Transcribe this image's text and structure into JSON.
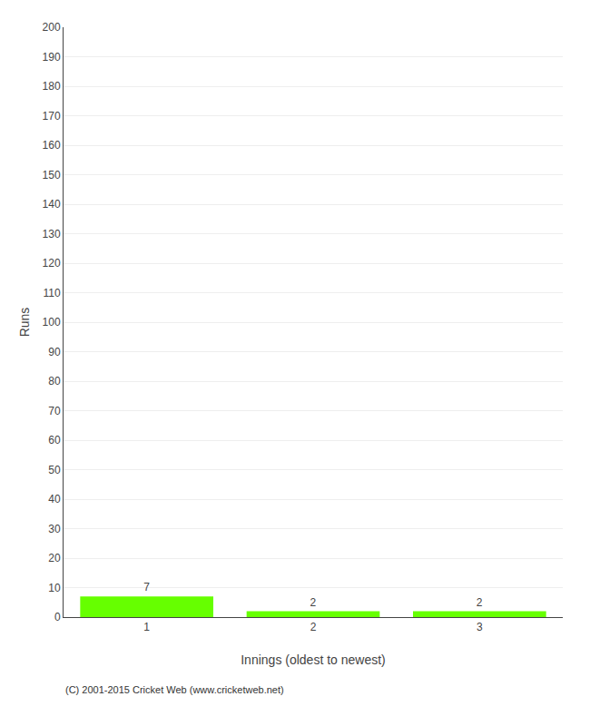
{
  "chart_data": {
    "type": "bar",
    "categories": [
      "1",
      "2",
      "3"
    ],
    "values": [
      7,
      2,
      2
    ],
    "color": "#66ff00",
    "xlabel": "Innings (oldest to newest)",
    "ylabel": "Runs",
    "ylim": [
      0,
      200
    ],
    "yticks": [
      0,
      10,
      20,
      30,
      40,
      50,
      60,
      70,
      80,
      90,
      100,
      110,
      120,
      130,
      140,
      150,
      160,
      170,
      180,
      190,
      200
    ],
    "grid": true,
    "data_labels": true,
    "annotations": [
      "(C) 2001-2015 Cricket Web (www.cricketweb.net)"
    ]
  }
}
